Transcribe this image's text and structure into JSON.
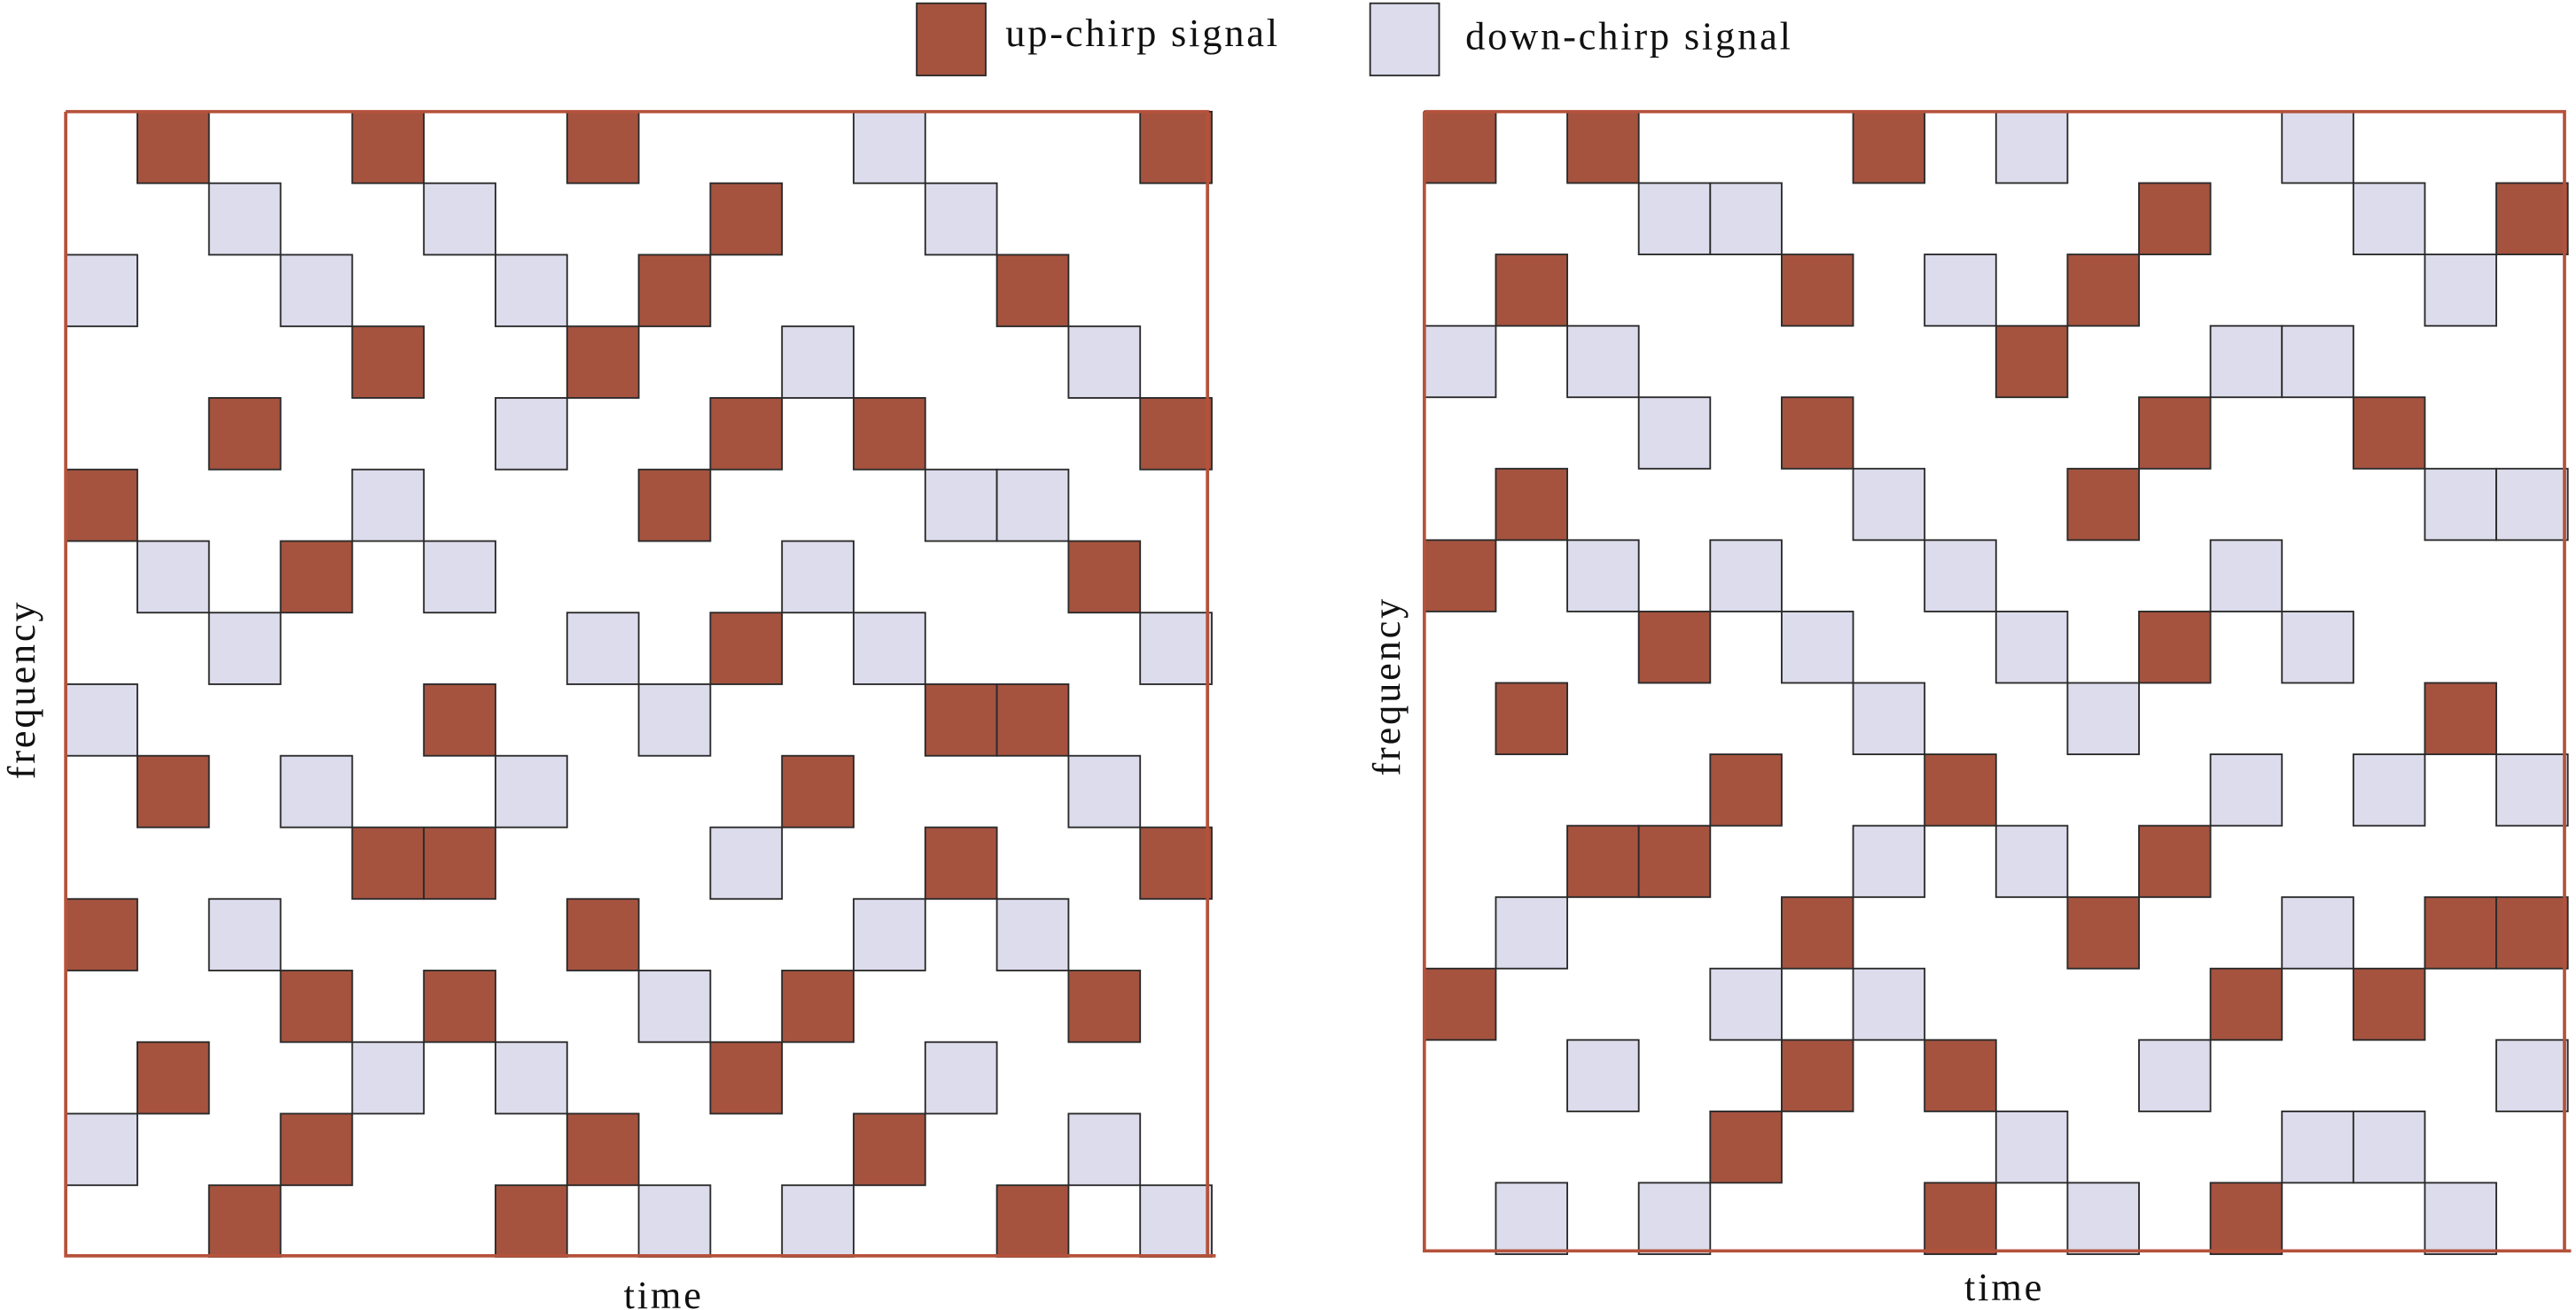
{
  "legend": [
    "up-chirp signal",
    "down-chirp signal"
  ],
  "panels": [
    {
      "x_label": "time",
      "y_label": "frequency"
    },
    {
      "x_label": "time",
      "y_label": "frequency"
    }
  ]
}
